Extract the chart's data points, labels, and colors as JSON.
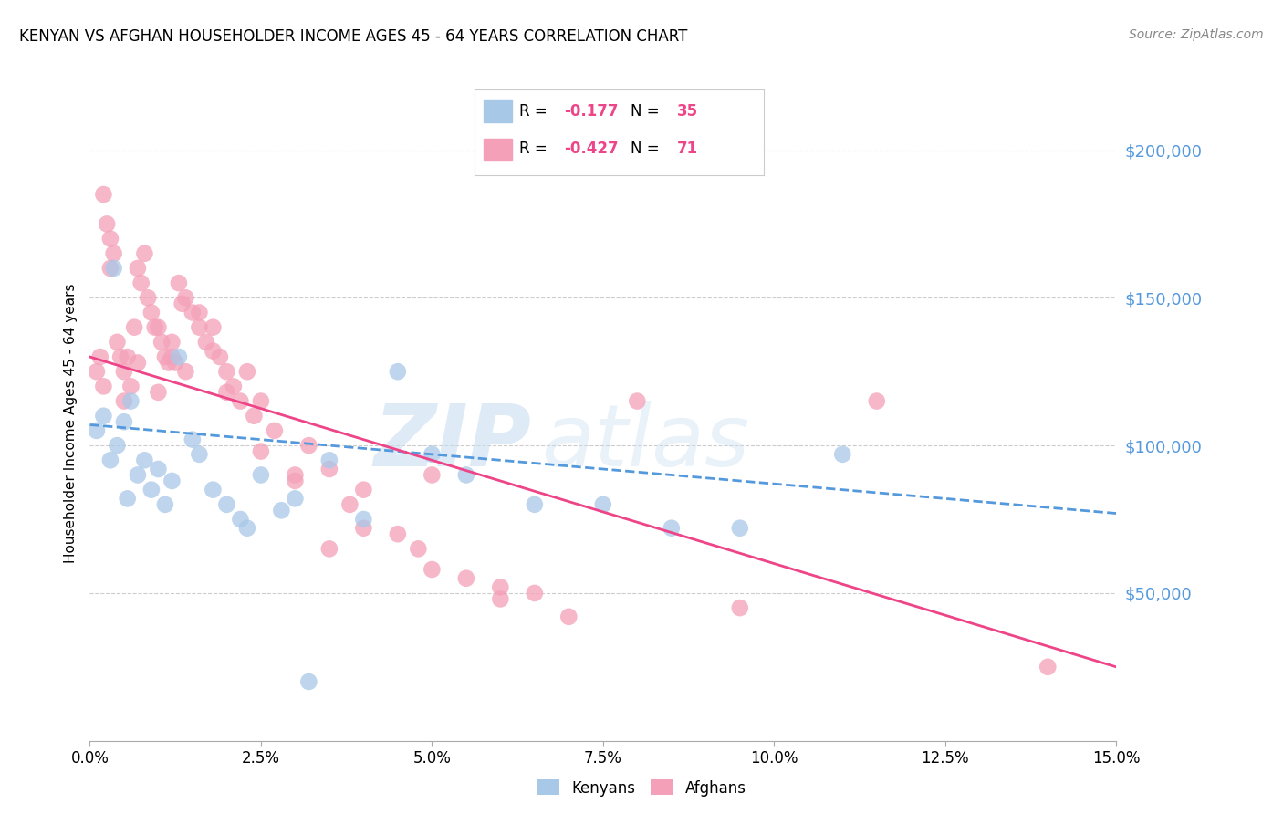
{
  "title": "KENYAN VS AFGHAN HOUSEHOLDER INCOME AGES 45 - 64 YEARS CORRELATION CHART",
  "source": "Source: ZipAtlas.com",
  "ylabel": "Householder Income Ages 45 - 64 years",
  "xmin": 0.0,
  "xmax": 15.0,
  "ymin": 0,
  "ymax": 215000,
  "kenyan_color": "#a8c8e8",
  "afghan_color": "#f4a0b8",
  "kenyan_line_color": "#5599dd",
  "afghan_line_color": "#ee4488",
  "kenyan_R": -0.177,
  "kenyan_N": 35,
  "afghan_R": -0.427,
  "afghan_N": 71,
  "kenyan_x": [
    0.1,
    0.2,
    0.3,
    0.35,
    0.4,
    0.5,
    0.55,
    0.6,
    0.7,
    0.8,
    0.9,
    1.0,
    1.1,
    1.2,
    1.3,
    1.5,
    1.6,
    1.8,
    2.0,
    2.2,
    2.5,
    2.8,
    3.0,
    3.5,
    4.0,
    4.5,
    5.0,
    5.5,
    6.5,
    7.5,
    8.5,
    9.5,
    11.0,
    2.3,
    3.2
  ],
  "kenyan_y": [
    105000,
    110000,
    95000,
    160000,
    100000,
    108000,
    82000,
    115000,
    90000,
    95000,
    85000,
    92000,
    80000,
    88000,
    130000,
    102000,
    97000,
    85000,
    80000,
    75000,
    90000,
    78000,
    82000,
    95000,
    75000,
    125000,
    97000,
    90000,
    80000,
    80000,
    72000,
    72000,
    97000,
    72000,
    20000
  ],
  "afghan_x": [
    0.1,
    0.15,
    0.2,
    0.25,
    0.3,
    0.35,
    0.4,
    0.45,
    0.5,
    0.55,
    0.6,
    0.65,
    0.7,
    0.75,
    0.8,
    0.85,
    0.9,
    0.95,
    1.0,
    1.05,
    1.1,
    1.15,
    1.2,
    1.25,
    1.3,
    1.35,
    1.4,
    1.5,
    1.6,
    1.7,
    1.8,
    1.9,
    2.0,
    2.1,
    2.2,
    2.3,
    2.4,
    2.5,
    2.7,
    3.0,
    3.2,
    3.5,
    3.8,
    4.0,
    4.5,
    4.8,
    5.0,
    5.5,
    6.0,
    6.5,
    7.0,
    0.2,
    0.3,
    0.5,
    0.7,
    1.0,
    1.2,
    1.4,
    1.6,
    1.8,
    2.0,
    2.5,
    3.0,
    3.5,
    4.0,
    5.0,
    6.0,
    8.0,
    9.5,
    11.5,
    14.0
  ],
  "afghan_y": [
    125000,
    130000,
    185000,
    175000,
    170000,
    165000,
    135000,
    130000,
    125000,
    130000,
    120000,
    140000,
    160000,
    155000,
    165000,
    150000,
    145000,
    140000,
    140000,
    135000,
    130000,
    128000,
    135000,
    128000,
    155000,
    148000,
    150000,
    145000,
    145000,
    135000,
    140000,
    130000,
    125000,
    120000,
    115000,
    125000,
    110000,
    115000,
    105000,
    88000,
    100000,
    92000,
    80000,
    85000,
    70000,
    65000,
    90000,
    55000,
    52000,
    50000,
    42000,
    120000,
    160000,
    115000,
    128000,
    118000,
    130000,
    125000,
    140000,
    132000,
    118000,
    98000,
    90000,
    65000,
    72000,
    58000,
    48000,
    115000,
    45000,
    115000,
    25000
  ],
  "watermark_top": "ZIP",
  "watermark_bottom": "atlas",
  "background_color": "#ffffff",
  "grid_color": "#cccccc"
}
